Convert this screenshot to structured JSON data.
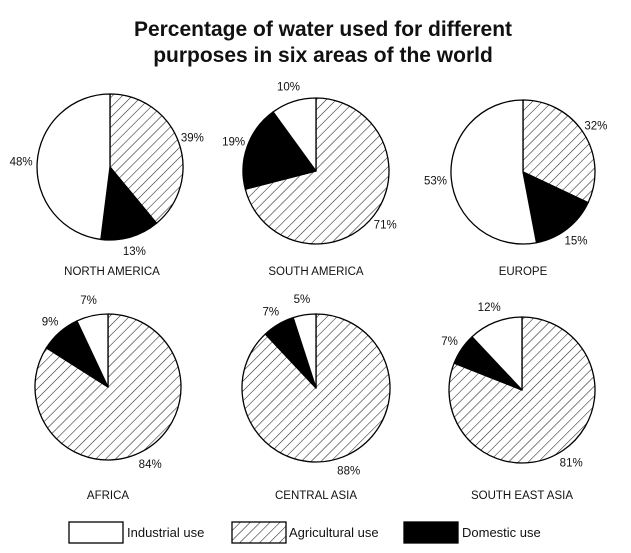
{
  "chart_data": {
    "type": "pie",
    "title": "Percentage of water used for different purposes in six areas of the world",
    "title_lines": [
      "Percentage of water used for different",
      "purposes in six areas of the world"
    ],
    "legend": [
      {
        "key": "industrial",
        "label": "Industrial use",
        "color": "#ffffff",
        "pattern": "none"
      },
      {
        "key": "agricultural",
        "label": "Agricultural use",
        "color": "#ffffff",
        "pattern": "diagonal-hatch"
      },
      {
        "key": "domestic",
        "label": "Domestic use",
        "color": "#000000",
        "pattern": "solid"
      }
    ],
    "legend_position": "bottom",
    "charts": [
      {
        "region": "NORTH AMERICA",
        "values": {
          "agricultural": 39,
          "domestic": 13,
          "industrial": 48
        },
        "labels": {
          "agricultural": "39%",
          "domestic": "13%",
          "industrial": "48%"
        }
      },
      {
        "region": "SOUTH AMERICA",
        "values": {
          "agricultural": 71,
          "domestic": 19,
          "industrial": 10
        },
        "labels": {
          "agricultural": "71%",
          "domestic": "19%",
          "industrial": "10%"
        }
      },
      {
        "region": "EUROPE",
        "values": {
          "agricultural": 32,
          "domestic": 15,
          "industrial": 53
        },
        "labels": {
          "agricultural": "32%",
          "domestic": "15%",
          "industrial": "53%"
        }
      },
      {
        "region": "AFRICA",
        "values": {
          "agricultural": 84,
          "domestic": 9,
          "industrial": 7
        },
        "labels": {
          "agricultural": "84%",
          "domestic": "9%",
          "industrial": "7%"
        }
      },
      {
        "region": "CENTRAL ASIA",
        "values": {
          "agricultural": 88,
          "domestic": 7,
          "industrial": 5
        },
        "labels": {
          "agricultural": "88%",
          "domestic": "7%",
          "industrial": "5%"
        }
      },
      {
        "region": "SOUTH EAST ASIA",
        "values": {
          "agricultural": 81,
          "domestic": 7,
          "industrial": 12
        },
        "labels": {
          "agricultural": "81%",
          "domestic": "7%",
          "industrial": "12%"
        }
      }
    ]
  }
}
